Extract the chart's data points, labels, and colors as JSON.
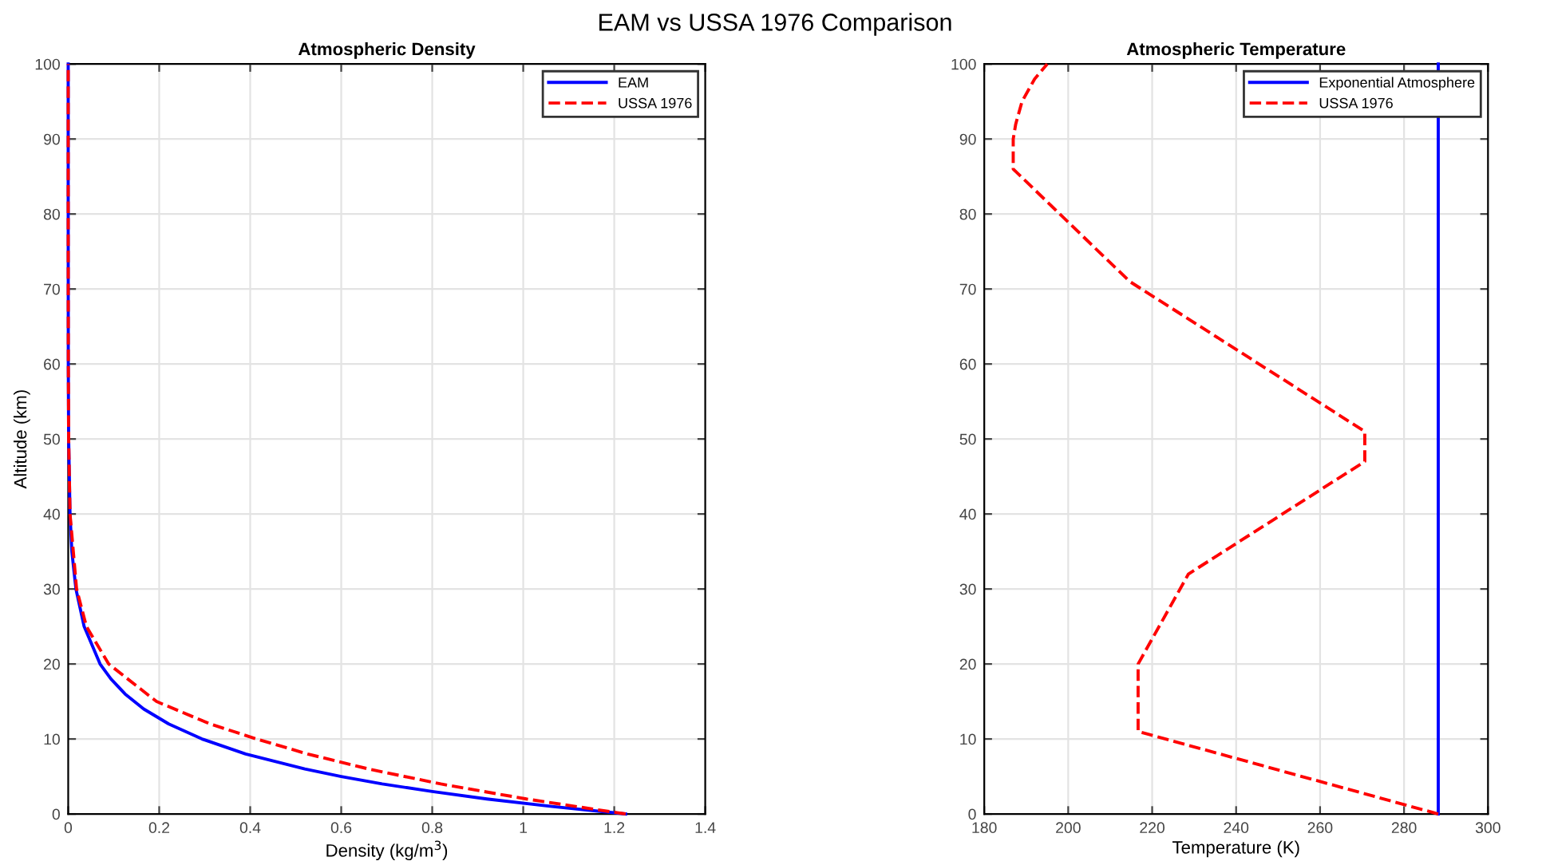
{
  "chart_data": [
    {
      "type": "line",
      "title": "Atmospheric Density",
      "annotations": [
        "EAM vs USSA 1976 Comparison"
      ],
      "xlabel": "Density (kg/m$^{3}$)",
      "ylabel": "Altitude (km)",
      "xlim": [
        0,
        1.4
      ],
      "ylim": [
        0,
        100
      ],
      "xticks": [
        0,
        0.2,
        0.4,
        0.6,
        0.8,
        1,
        1.2,
        1.4
      ],
      "yticks": [
        0,
        10,
        20,
        30,
        40,
        50,
        60,
        70,
        80,
        90,
        100
      ],
      "grid": true,
      "legend": "top right",
      "series": [
        {
          "name": "EAM",
          "color": "#0000ff",
          "line_style": "solid",
          "x": [
            1.225,
            1.063,
            0.92,
            0.8,
            0.69,
            0.6,
            0.52,
            0.39,
            0.294,
            0.221,
            0.166,
            0.125,
            0.094,
            0.07,
            0.035,
            0.017,
            0.008,
            0.004,
            0.001,
            0.0002,
            1e-05,
            0
          ],
          "values": [
            0,
            1,
            2,
            3,
            4,
            5,
            6,
            8,
            10,
            12,
            14,
            16,
            18,
            20,
            25,
            30,
            35,
            40,
            50,
            60,
            80,
            100
          ]
        },
        {
          "name": "USSA 1976",
          "color": "#ff0000",
          "line_style": "dashed",
          "x": [
            1.225,
            1.007,
            0.819,
            0.66,
            0.526,
            0.414,
            0.312,
            0.194,
            0.0889,
            0.0401,
            0.0184,
            0.004,
            0.001,
            0.0003,
            8e-05,
            2e-05,
            0
          ],
          "values": [
            0,
            2,
            4,
            6,
            8,
            10,
            12,
            15,
            20,
            25,
            30,
            40,
            50,
            60,
            70,
            80,
            100
          ]
        }
      ]
    },
    {
      "type": "line",
      "title": "Atmospheric Temperature",
      "xlabel": "Temperature (K)",
      "xlim": [
        180,
        300
      ],
      "ylim": [
        0,
        100
      ],
      "xticks": [
        180,
        200,
        220,
        240,
        260,
        280,
        300
      ],
      "yticks": [
        0,
        10,
        20,
        30,
        40,
        50,
        60,
        70,
        80,
        90,
        100
      ],
      "grid": true,
      "legend": "top right",
      "series": [
        {
          "name": "Exponential Atmosphere",
          "color": "#0000ff",
          "line_style": "solid",
          "x": [
            288.15,
            288.15
          ],
          "values": [
            0,
            100
          ]
        },
        {
          "name": "USSA 1976",
          "color": "#ff0000",
          "line_style": "dashed",
          "x": [
            288.15,
            216.65,
            216.65,
            228.65,
            270.65,
            270.65,
            214.65,
            186.9,
            186.9,
            187.5,
            189,
            192,
            195
          ],
          "values": [
            0,
            11,
            20,
            32,
            47,
            51,
            71,
            86,
            90,
            92,
            95,
            98,
            100
          ]
        }
      ]
    }
  ]
}
